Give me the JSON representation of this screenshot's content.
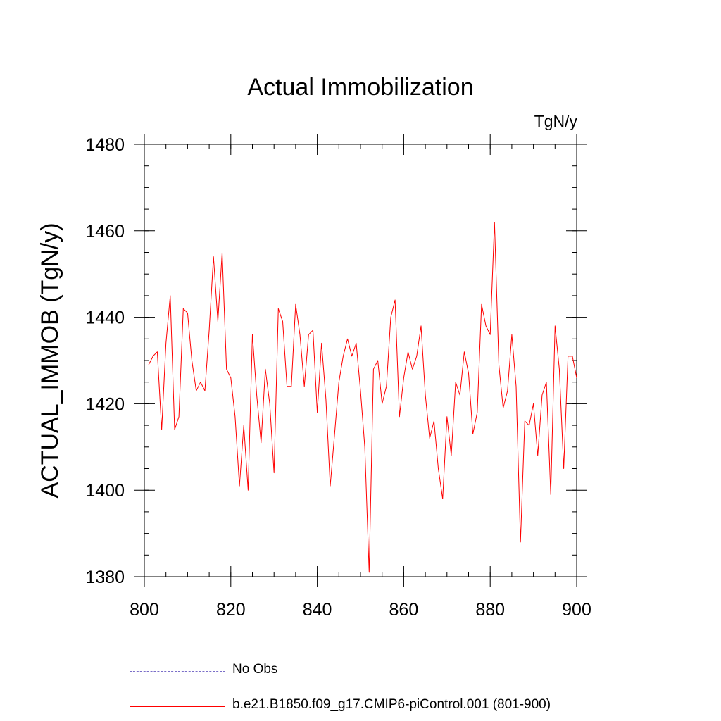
{
  "chart_data": {
    "type": "line",
    "title": "Actual Immobilization",
    "units_label": "TgN/y",
    "xlabel": "",
    "ylabel": "ACTUAL_IMMOB  (TgN/y)",
    "xlim": [
      800,
      900
    ],
    "ylim": [
      1380,
      1480
    ],
    "x_ticks": [
      800,
      820,
      840,
      860,
      880,
      900
    ],
    "y_ticks": [
      1380,
      1400,
      1420,
      1440,
      1460,
      1480
    ],
    "x_minor_step": 5,
    "y_minor_step": 5,
    "grid": false,
    "legend_position": "bottom",
    "series": [
      {
        "name": "No Obs",
        "color": "#7a6ec8",
        "dash": "dashed",
        "x": [],
        "values": []
      },
      {
        "name": "b.e21.B1850.f09_g17.CMIP6-piControl.001 (801-900)",
        "color": "#ff0000",
        "dash": "solid",
        "x": [
          801,
          802,
          803,
          804,
          805,
          806,
          807,
          808,
          809,
          810,
          811,
          812,
          813,
          814,
          815,
          816,
          817,
          818,
          819,
          820,
          821,
          822,
          823,
          824,
          825,
          826,
          827,
          828,
          829,
          830,
          831,
          832,
          833,
          834,
          835,
          836,
          837,
          838,
          839,
          840,
          841,
          842,
          843,
          844,
          845,
          846,
          847,
          848,
          849,
          850,
          851,
          852,
          853,
          854,
          855,
          856,
          857,
          858,
          859,
          860,
          861,
          862,
          863,
          864,
          865,
          866,
          867,
          868,
          869,
          870,
          871,
          872,
          873,
          874,
          875,
          876,
          877,
          878,
          879,
          880,
          881,
          882,
          883,
          884,
          885,
          886,
          887,
          888,
          889,
          890,
          891,
          892,
          893,
          894,
          895,
          896,
          897,
          898,
          899,
          900
        ],
        "values": [
          1429,
          1431,
          1432,
          1414,
          1434,
          1445,
          1414,
          1417,
          1442,
          1441,
          1430,
          1423,
          1425,
          1423,
          1437,
          1454,
          1439,
          1455,
          1428,
          1426,
          1417,
          1401,
          1415,
          1400,
          1436,
          1422,
          1411,
          1428,
          1420,
          1404,
          1442,
          1439,
          1424,
          1424,
          1443,
          1436,
          1424,
          1436,
          1437,
          1418,
          1434,
          1421,
          1401,
          1413,
          1425,
          1431,
          1435,
          1431,
          1434,
          1423,
          1410,
          1381,
          1428,
          1430,
          1420,
          1424,
          1440,
          1444,
          1417,
          1426,
          1432,
          1428,
          1431,
          1438,
          1422,
          1412,
          1416,
          1405,
          1398,
          1417,
          1408,
          1425,
          1422,
          1432,
          1427,
          1413,
          1418,
          1443,
          1438,
          1436,
          1462,
          1429,
          1419,
          1423,
          1436,
          1424,
          1388,
          1416,
          1415,
          1420,
          1408,
          1422,
          1425,
          1399,
          1438,
          1428,
          1405,
          1431,
          1431,
          1426
        ]
      }
    ]
  }
}
